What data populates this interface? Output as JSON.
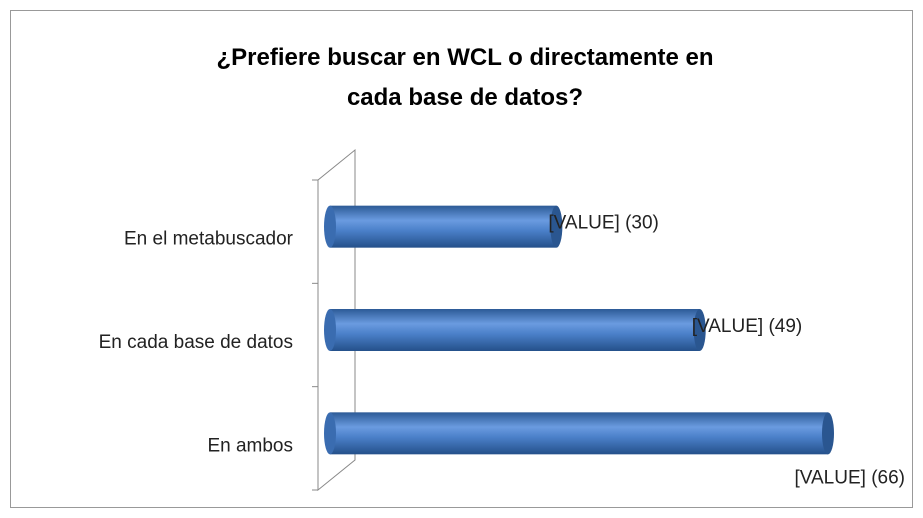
{
  "chart_data": {
    "type": "bar",
    "orientation": "horizontal",
    "title": "¿Prefiere buscar en WCL o directamente en cada base de datos?",
    "categories": [
      "En el metabuscador",
      "En cada base de datos",
      "En ambos"
    ],
    "values": [
      30,
      49,
      66
    ],
    "value_labels": [
      "[VALUE] (30)",
      "[VALUE] (49)",
      "[VALUE] (66)"
    ],
    "color": "#4a7fc8"
  }
}
